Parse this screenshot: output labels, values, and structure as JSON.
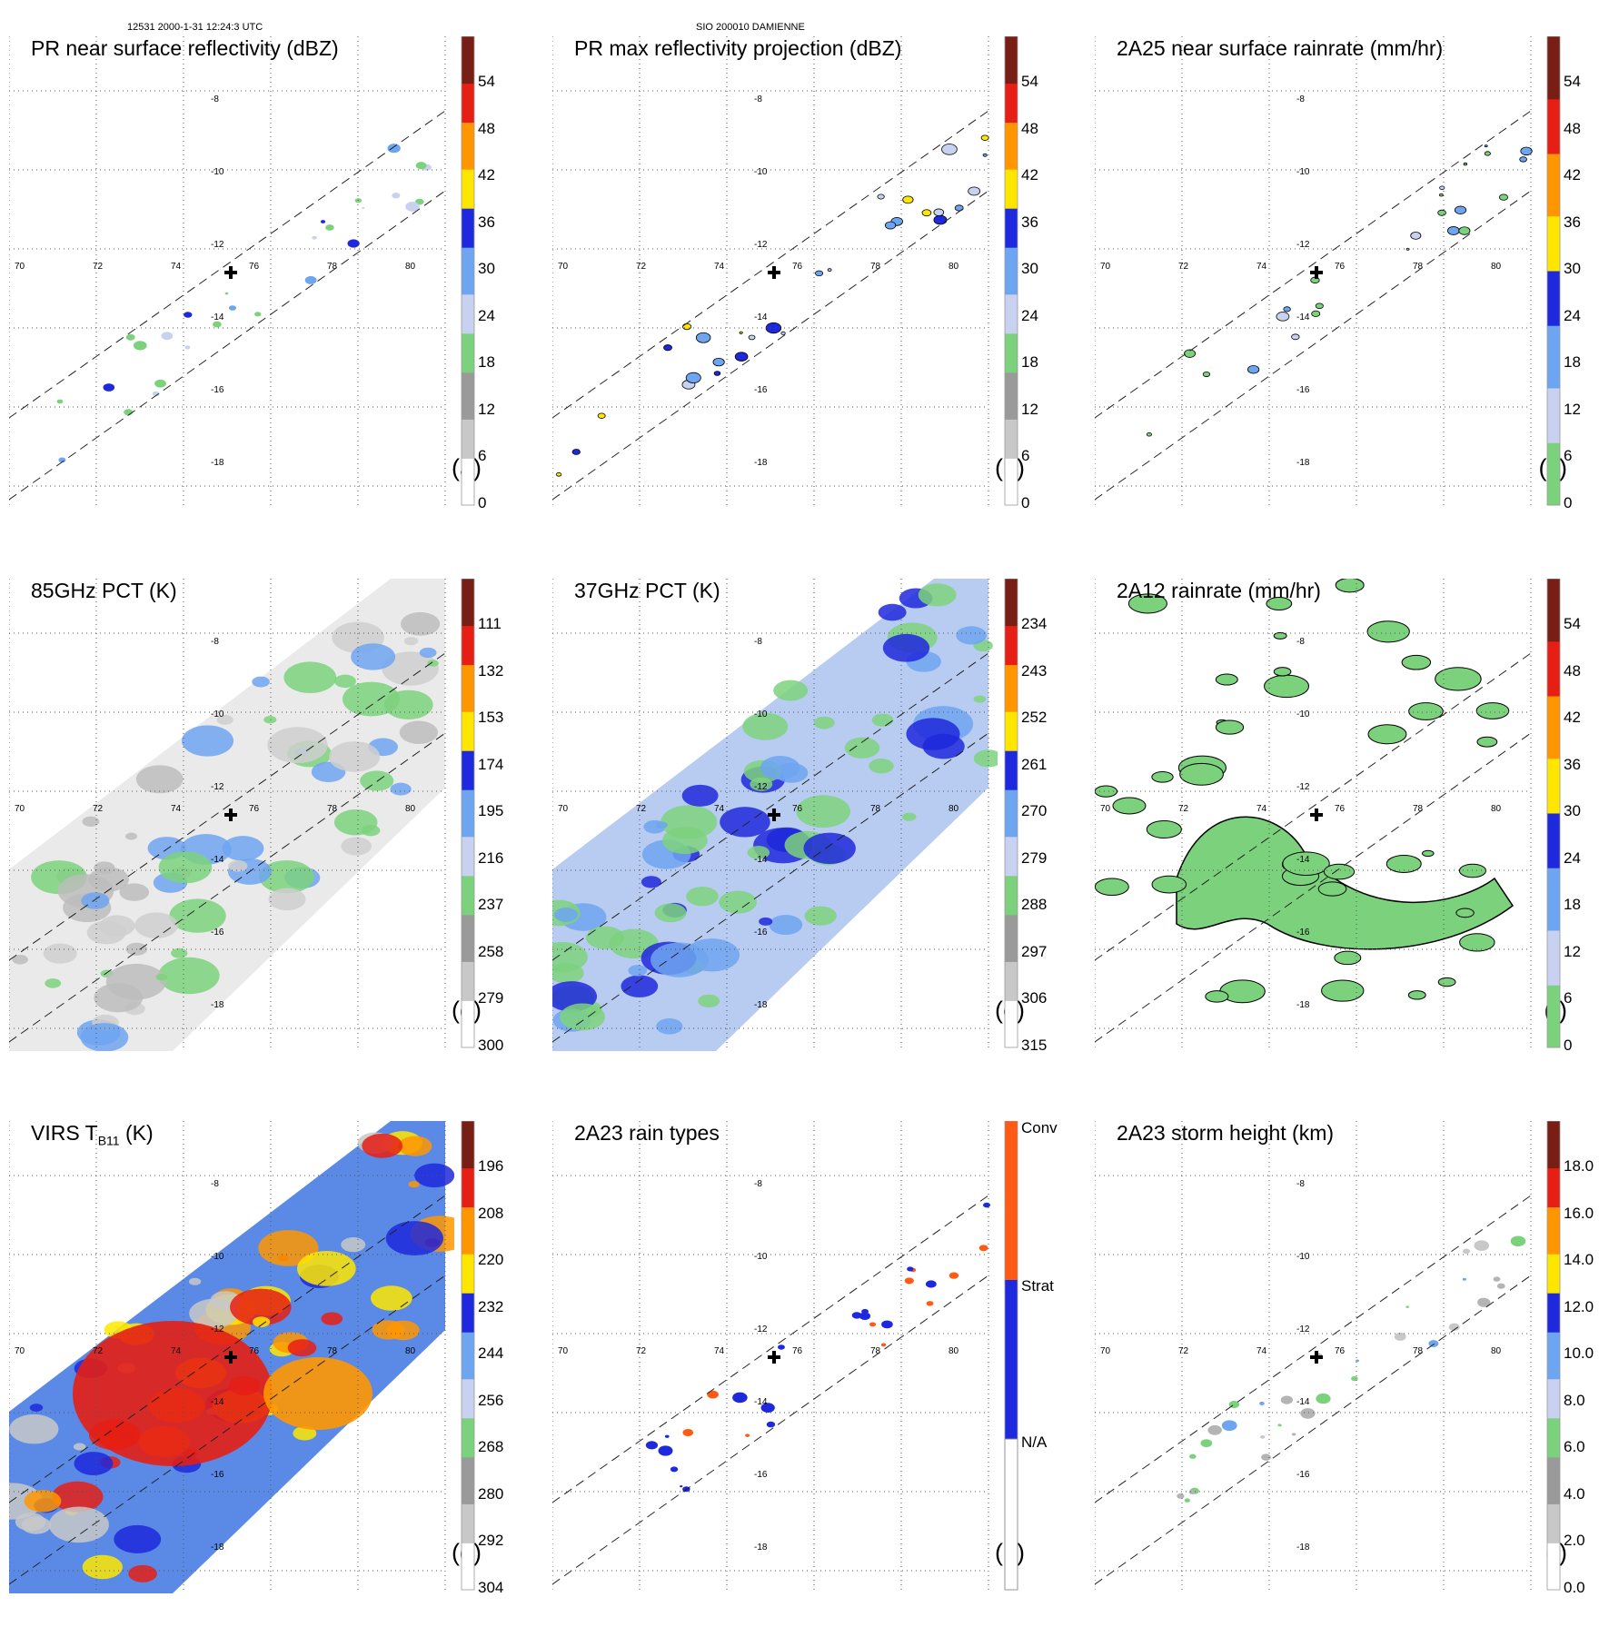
{
  "header": {
    "left": "12531 2000-1-31 12:24:3 UTC",
    "center": "SIO 200010 DAMIENNE"
  },
  "lon_ticks": [
    "70",
    "72",
    "74",
    "76",
    "78",
    "80"
  ],
  "lat_ticks": [
    "-8",
    "-10",
    "-12",
    "-14",
    "-16",
    "-18"
  ],
  "colors": {
    "white": "#ffffff",
    "gray": "#b4b4b4",
    "green": "#7cd27c",
    "lightblue": "#c8d2f0",
    "skyblue": "#6ea5f0",
    "blue": "#1e28dc",
    "yellow": "#ffe600",
    "orange": "#ff9600",
    "red": "#e61e14",
    "darkred": "#781e14"
  },
  "panels": [
    {
      "id": "a",
      "title": "PR near surface reflectivity (dBZ)",
      "sub": "",
      "title_tail": "",
      "label": "(a)",
      "bar": "std",
      "ticks": [
        "54",
        "48",
        "42",
        "36",
        "30",
        "24",
        "18",
        "12",
        "6",
        "0"
      ]
    },
    {
      "id": "b",
      "title": "PR max reflectivity projection (dBZ)",
      "sub": "",
      "title_tail": "",
      "label": "(b)",
      "bar": "std",
      "ticks": [
        "54",
        "48",
        "42",
        "36",
        "30",
        "24",
        "18",
        "12",
        "6",
        "0"
      ]
    },
    {
      "id": "c",
      "title": "2A25 near surface rainrate (mm/hr)",
      "sub": "",
      "title_tail": "",
      "label": "(c)",
      "bar": "rain",
      "ticks": [
        "54",
        "48",
        "42",
        "36",
        "30",
        "24",
        "18",
        "12",
        "6",
        "0"
      ]
    },
    {
      "id": "d",
      "title": "85GHz PCT (K)",
      "sub": "",
      "title_tail": "",
      "label": "(d)",
      "bar": "std",
      "ticks": [
        "111",
        "132",
        "153",
        "174",
        "195",
        "216",
        "237",
        "258",
        "279",
        "300"
      ]
    },
    {
      "id": "e",
      "title": "37GHz PCT (K)",
      "sub": "",
      "title_tail": "",
      "label": "(e)",
      "bar": "std",
      "ticks": [
        "234",
        "243",
        "252",
        "261",
        "270",
        "279",
        "288",
        "297",
        "306",
        "315"
      ]
    },
    {
      "id": "f",
      "title": "2A12 rainrate (mm/hr)",
      "sub": "",
      "title_tail": "",
      "label": "(f)",
      "bar": "rain",
      "ticks": [
        "54",
        "48",
        "42",
        "36",
        "30",
        "24",
        "18",
        "12",
        "6",
        "0"
      ]
    },
    {
      "id": "g",
      "title": "VIRS T",
      "sub": "B11",
      "title_tail": " (K)",
      "label": "(g)",
      "bar": "std",
      "ticks": [
        "196",
        "208",
        "220",
        "232",
        "244",
        "256",
        "268",
        "280",
        "292",
        "304"
      ]
    },
    {
      "id": "h",
      "title": "2A23 rain types",
      "sub": "",
      "title_tail": "",
      "label": "(h)",
      "bar": "types",
      "ticks": [
        "Conv",
        "Strat",
        "N/A"
      ]
    },
    {
      "id": "i",
      "title": "2A23 storm height (km)",
      "sub": "",
      "title_tail": "",
      "label": "(i)",
      "bar": "std",
      "ticks": [
        "18.0",
        "16.0",
        "14.0",
        "12.0",
        "10.0",
        "8.0",
        "6.0",
        "4.0",
        "2.0",
        "0.0"
      ]
    }
  ]
}
